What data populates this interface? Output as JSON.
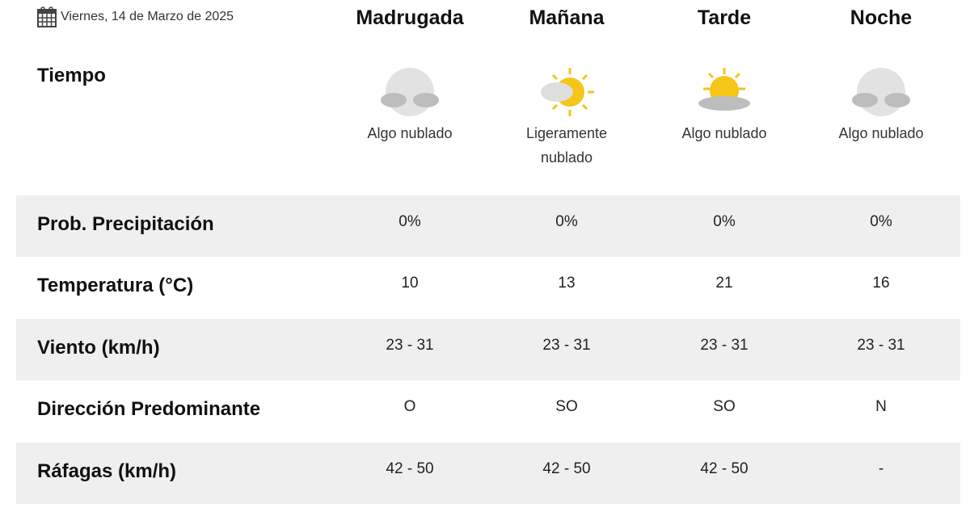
{
  "date": "Viernes, 14 de Marzo de 2025",
  "periods": [
    {
      "name": "Madrugada",
      "icon": "moon-cloud-icon",
      "desc": "Algo nublado",
      "precip": "0%",
      "temp": "10",
      "wind": "23 - 31",
      "dir": "O",
      "gust": "42 - 50"
    },
    {
      "name": "Mañana",
      "icon": "sun-cloud-icon",
      "desc": "Ligeramente nublado",
      "precip": "0%",
      "temp": "13",
      "wind": "23 - 31",
      "dir": "SO",
      "gust": "42 - 50"
    },
    {
      "name": "Tarde",
      "icon": "sun-cloud-icon",
      "desc": "Algo nublado",
      "precip": "0%",
      "temp": "21",
      "wind": "23 - 31",
      "dir": "SO",
      "gust": "42 - 50"
    },
    {
      "name": "Noche",
      "icon": "moon-cloud-icon",
      "desc": "Algo nublado",
      "precip": "0%",
      "temp": "16",
      "wind": "23 - 31",
      "dir": "N",
      "gust": "-"
    }
  ],
  "labels": {
    "tiempo": "Tiempo",
    "precip": "Prob. Precipitación",
    "temp": "Temperatura (°C)",
    "wind": "Viento (km/h)",
    "dir": "Dirección Predominante",
    "gust": "Ráfagas (km/h)"
  },
  "colors": {
    "row_alt": "#efefef",
    "sun": "#f5c518",
    "cloud": "#d9d9d9",
    "moon": "#e2e2e2"
  }
}
